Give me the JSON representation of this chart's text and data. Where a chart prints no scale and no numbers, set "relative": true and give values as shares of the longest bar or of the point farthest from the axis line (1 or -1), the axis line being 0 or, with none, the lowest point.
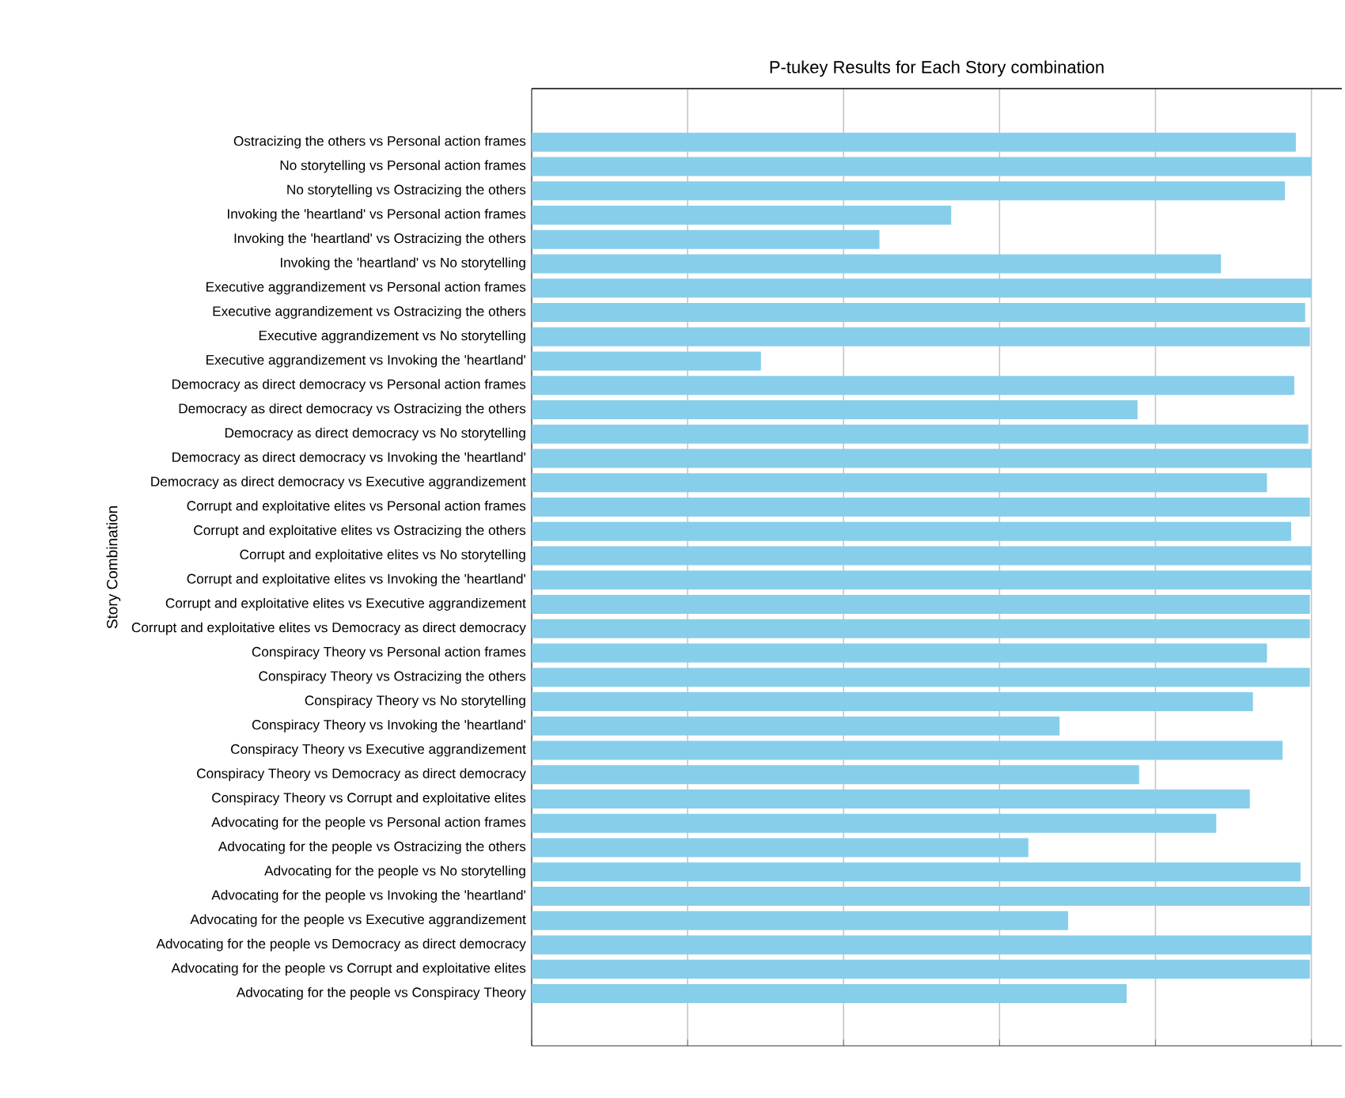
{
  "chart_data": {
    "type": "bar",
    "orientation": "horizontal",
    "relative": true,
    "grid": "x",
    "tick_labels": "y",
    "color": "#87ceeb",
    "title": "P-tukey Results for Each Story combination",
    "ylabel": "Story Combination",
    "categories": [
      "Ostracizing the others vs Personal action frames",
      "No storytelling vs Personal action frames",
      "No storytelling vs Ostracizing the others",
      "Invoking the 'heartland' vs Personal action frames",
      "Invoking the 'heartland' vs Ostracizing the others",
      "Invoking the 'heartland' vs No storytelling",
      "Executive aggrandizement vs Personal action frames",
      "Executive aggrandizement vs Ostracizing the others",
      "Executive aggrandizement vs No storytelling",
      "Executive aggrandizement vs Invoking the 'heartland'",
      "Democracy as direct democracy vs Personal action frames",
      "Democracy as direct democracy vs Ostracizing the others",
      "Democracy as direct democracy vs No storytelling",
      "Democracy as direct democracy vs Invoking the 'heartland'",
      "Democracy as direct democracy vs Executive aggrandizement",
      "Corrupt and exploitative elites vs Personal action frames",
      "Corrupt and exploitative elites vs Ostracizing the others",
      "Corrupt and exploitative elites vs No storytelling",
      "Corrupt and exploitative elites vs Invoking the 'heartland'",
      "Corrupt and exploitative elites vs Executive aggrandizement",
      "Corrupt and exploitative elites vs Democracy as direct democracy",
      "Conspiracy Theory vs Personal action frames",
      "Conspiracy Theory vs Ostracizing the others",
      "Conspiracy Theory vs No storytelling",
      "Conspiracy Theory vs Invoking the 'heartland'",
      "Conspiracy Theory vs Executive aggrandizement",
      "Conspiracy Theory vs Democracy as direct democracy",
      "Conspiracy Theory vs Corrupt and exploitative elites",
      "Advocating for the people vs Personal action frames",
      "Advocating for the people vs Ostracizing the others",
      "Advocating for the people vs No storytelling",
      "Advocating for the people vs Invoking the 'heartland'",
      "Advocating for the people vs Executive aggrandizement",
      "Advocating for the people vs Democracy as direct democracy",
      "Advocating for the people vs Corrupt and exploitative elites",
      "Advocating for the people vs Conspiracy Theory"
    ],
    "values": [
      0.98,
      1.0,
      0.966,
      0.538,
      0.446,
      0.884,
      1.0,
      0.992,
      0.998,
      0.294,
      0.978,
      0.777,
      0.996,
      1.0,
      0.943,
      0.998,
      0.974,
      1.0,
      1.0,
      0.998,
      0.998,
      0.943,
      0.998,
      0.925,
      0.677,
      0.963,
      0.779,
      0.921,
      0.878,
      0.637,
      0.986,
      0.998,
      0.688,
      1.0,
      0.998,
      0.763
    ]
  }
}
